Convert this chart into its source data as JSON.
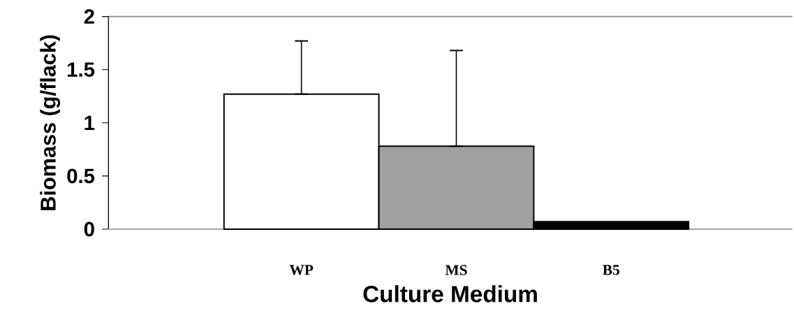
{
  "chart_data": {
    "type": "bar",
    "xlabel": "Culture Medium",
    "ylabel": "Biomass (g/flack)",
    "categories": [
      "WP",
      "MS",
      "B5"
    ],
    "values": [
      1.27,
      0.78,
      0.07
    ],
    "errors": [
      [
        1.27,
        1.77
      ],
      [
        0.78,
        1.68
      ],
      null
    ],
    "colors": [
      "#ffffff",
      "#a0a0a0",
      "#000000"
    ],
    "ylim": [
      0,
      2
    ],
    "yticks": [
      0,
      0.5,
      1,
      1.5,
      2
    ]
  }
}
